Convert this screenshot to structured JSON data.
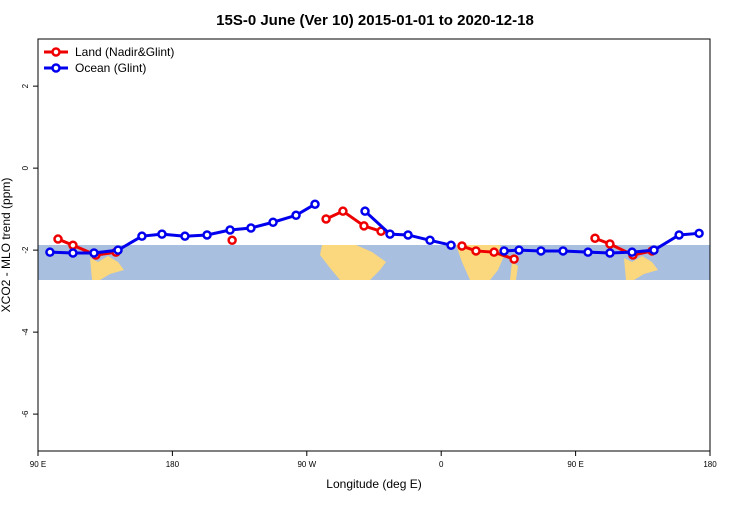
{
  "chart_data": {
    "type": "line",
    "title": "15S-0 June (Ver 10)   2015-01-01 to 2020-12-18",
    "x_label": "Longitude (deg E)",
    "y_label": "XCO2 - MLO trend (ppm)",
    "xlim": [
      90,
      540
    ],
    "xticks": [
      {
        "value": 90,
        "label": "90 E"
      },
      180,
      {
        "value": 270,
        "label": "90 W"
      },
      {
        "value": 360,
        "label": "0"
      },
      {
        "value": 450,
        "label": "90 E"
      },
      {
        "value": 540,
        "label": "180"
      }
    ],
    "ylim": [
      -6.9,
      3.15
    ],
    "yticks": [
      2,
      0,
      -2,
      -4,
      -6
    ],
    "legend": "top-left",
    "series": [
      {
        "name": "Land (Nadir&Glint)",
        "color": "#ee0000",
        "x": [
          103.4,
          113.4,
          128.8,
          142.2,
          150,
          220.0,
          250,
          282.9,
          294.2,
          308.3,
          319.7,
          340,
          373.9,
          383.3,
          395.4,
          408.8,
          430,
          463.0,
          473.0,
          488.4,
          501.2
        ],
        "values": [
          -1.73,
          -1.88,
          -2.12,
          -2.05,
          null,
          -1.76,
          null,
          -1.24,
          -1.05,
          -1.41,
          -1.54,
          null,
          -1.9,
          -2.02,
          -2.05,
          -2.22,
          null,
          -1.71,
          -1.85,
          -2.12,
          -2.02
        ]
      },
      {
        "name": "Ocean (Glint)",
        "color": "#0000ee",
        "x": [
          98.0,
          113.4,
          127.5,
          143.6,
          159.6,
          173.0,
          188.4,
          203.2,
          218.6,
          232.6,
          247.4,
          262.8,
          275.5,
          290,
          309.0,
          325.7,
          337.8,
          352.5,
          366.6,
          380,
          402.1,
          412.1,
          426.8,
          441.6,
          458.3,
          473.0,
          487.8,
          502.5,
          519.3,
          532.7
        ],
        "values": [
          -2.05,
          -2.07,
          -2.07,
          -2.0,
          -1.66,
          -1.61,
          -1.66,
          -1.63,
          -1.51,
          -1.46,
          -1.32,
          -1.15,
          -0.88,
          null,
          -1.05,
          -1.61,
          -1.63,
          -1.76,
          -1.88,
          null,
          -2.02,
          -2.0,
          -2.02,
          -2.02,
          -2.05,
          -2.07,
          -2.05,
          -2.0,
          -1.63,
          -1.59
        ]
      }
    ]
  }
}
